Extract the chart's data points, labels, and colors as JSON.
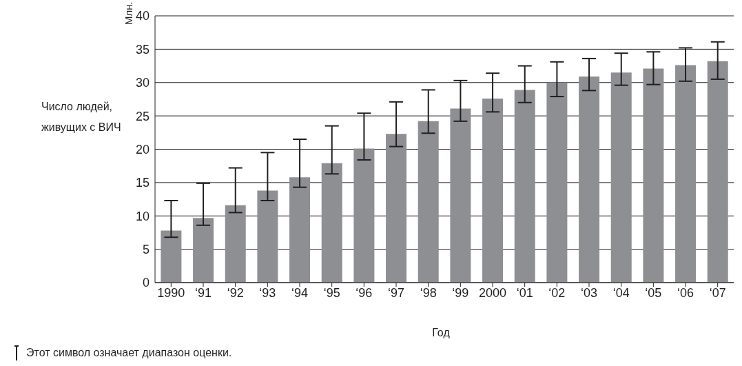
{
  "chart_data": {
    "type": "bar",
    "ylabel": "Число людей, живущих с ВИЧ",
    "xlabel": "Год",
    "categories": [
      "1990",
      "‘91",
      "‘92",
      "‘93",
      "‘94",
      "‘95",
      "‘96",
      "‘97",
      "‘98",
      "‘99",
      "2000",
      "‘01",
      "‘02",
      "‘03",
      "‘04",
      "‘05",
      "‘06",
      "‘07"
    ],
    "values": [
      7.8,
      9.7,
      11.6,
      13.8,
      15.8,
      17.9,
      20.1,
      22.3,
      24.2,
      26.1,
      27.6,
      28.9,
      30.0,
      30.9,
      31.5,
      32.1,
      32.6,
      33.2
    ],
    "errors": [
      [
        6.8,
        12.3
      ],
      [
        8.6,
        14.9
      ],
      [
        10.5,
        17.2
      ],
      [
        12.3,
        19.5
      ],
      [
        14.3,
        21.5
      ],
      [
        16.3,
        23.5
      ],
      [
        18.4,
        25.4
      ],
      [
        20.4,
        27.1
      ],
      [
        22.4,
        28.9
      ],
      [
        24.2,
        30.3
      ],
      [
        25.6,
        31.4
      ],
      [
        27.0,
        32.5
      ],
      [
        27.9,
        33.1
      ],
      [
        28.8,
        33.6
      ],
      [
        29.6,
        34.4
      ],
      [
        29.7,
        34.6
      ],
      [
        30.2,
        35.2
      ],
      [
        30.5,
        36.1
      ]
    ],
    "color": "#8e8f93",
    "ylim": [
      0,
      40
    ],
    "yticks": [
      0,
      5,
      10,
      15,
      20,
      25,
      30,
      35,
      40
    ],
    "grid": "y",
    "annotations": [
      "Млн.",
      "Этот символ означает диапазон оценки."
    ]
  }
}
